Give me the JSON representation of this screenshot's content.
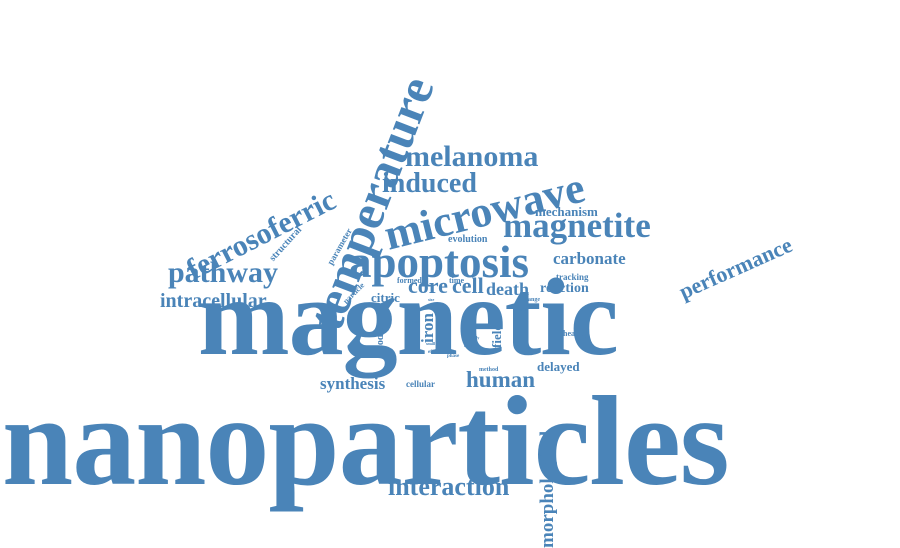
{
  "style": {
    "word_color": "#4a84b8",
    "background": "#ffffff"
  },
  "words": {
    "nanoparticles": "nanoparticles",
    "magnetic": "magnetic",
    "temperature": "temperature",
    "microwave": "microwave",
    "apoptosis": "apoptosis",
    "magnetite": "magnetite",
    "melanoma": "melanoma",
    "induced": "induced",
    "ferrosoferric": "ferrosoferric",
    "pathway": "pathway",
    "intracellular": "intracellular",
    "performance": "performance",
    "interaction": "interaction",
    "morphological": "morphological",
    "human": "human",
    "synthesis": "synthesis",
    "core": "core",
    "cell": "cell",
    "death": "death",
    "reaction": "reaction",
    "carbonate": "carbonate",
    "mechanism": "mechanism",
    "evolution": "evolution",
    "structural": "structural",
    "parameter": "parameter",
    "citric": "citric",
    "iron": "iron",
    "field": "field",
    "sodium": "sodium",
    "delayed": "delayed",
    "cellular": "cellular",
    "heating": "heating",
    "tracking": "tracking",
    "change": "change",
    "formed": "formed",
    "time": "time",
    "particle": "particle",
    "method": "method",
    "effect": "effect",
    "phase": "phase",
    "size": "size",
    "find": "find",
    "mode": "mode",
    "study": "study",
    "small": "small",
    "rate": "rate"
  }
}
